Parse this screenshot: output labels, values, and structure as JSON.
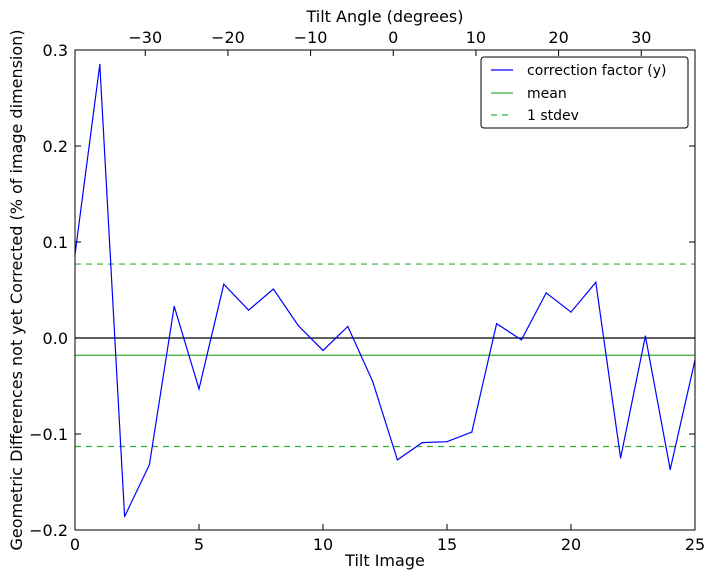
{
  "chart_data": {
    "type": "line",
    "xlabel": "Tilt Image",
    "ylabel": "Geometric Differences not yet Corrected (% of image dimension)",
    "x2label": "Tilt Angle (degrees)",
    "xlim": [
      0,
      25
    ],
    "ylim": [
      -0.2,
      0.3
    ],
    "x2lim": [
      -38.5,
      36.5
    ],
    "grid": false,
    "legend_position": "top-right",
    "x_ticks": [
      0,
      5,
      10,
      15,
      20,
      25
    ],
    "y_ticks": [
      -0.2,
      -0.1,
      0.0,
      0.1,
      0.2,
      0.3
    ],
    "x2_ticks": [
      -30,
      -20,
      -10,
      0,
      10,
      20,
      30
    ],
    "x_tick_labels": [
      "0",
      "5",
      "10",
      "15",
      "20",
      "25"
    ],
    "y_tick_labels": [
      "−0.2",
      "−0.1",
      "0.0",
      "0.1",
      "0.2",
      "0.3"
    ],
    "x2_tick_labels": [
      "−30",
      "−20",
      "−10",
      "0",
      "10",
      "20",
      "30"
    ],
    "series": [
      {
        "name": "correction factor (y)",
        "color": "#0000ff",
        "style": "solid",
        "x": [
          0,
          1,
          2,
          3,
          4,
          5,
          6,
          7,
          8,
          9,
          10,
          11,
          12,
          13,
          14,
          15,
          16,
          17,
          18,
          19,
          20,
          21,
          22,
          23,
          24,
          25
        ],
        "y": [
          0.087,
          0.285,
          -0.186,
          -0.132,
          0.033,
          -0.053,
          0.056,
          0.029,
          0.051,
          0.013,
          -0.013,
          0.012,
          -0.045,
          -0.127,
          -0.109,
          -0.108,
          -0.098,
          0.015,
          -0.002,
          0.047,
          0.027,
          0.058,
          -0.125,
          0.002,
          -0.137,
          -0.023
        ]
      },
      {
        "name": "mean",
        "color": "#33b033",
        "style": "solid",
        "y_const": -0.018
      },
      {
        "name": "1 stdev",
        "color": "#33b033",
        "style": "dashed",
        "y_const": [
          0.077,
          -0.113
        ]
      }
    ],
    "reference_line": {
      "y": 0.0,
      "color": "#000000"
    }
  }
}
